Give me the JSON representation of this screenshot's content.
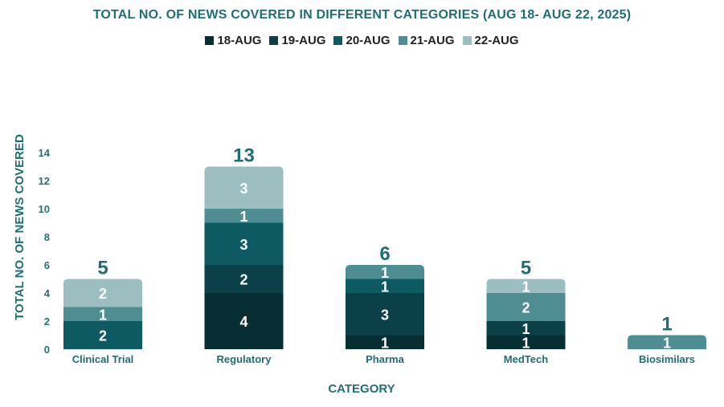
{
  "chart_data": {
    "type": "bar",
    "stacked": true,
    "title": "TOTAL NO. OF NEWS COVERED IN DIFFERENT CATEGORIES (AUG 18- AUG 22, 2025)",
    "xlabel": "CATEGORY",
    "ylabel": "TOTAL  NO. OF NEWS COVERED",
    "ylim": [
      0,
      14
    ],
    "yticks": [
      0,
      2,
      4,
      6,
      8,
      10,
      12,
      14
    ],
    "grid": false,
    "legend_position": "top-center",
    "categories": [
      "Clinical Trial",
      "Regulatory",
      "Pharma",
      "MedTech",
      "Biosimilars"
    ],
    "series": [
      {
        "name": "18-AUG",
        "color": "#062e33",
        "values": [
          0,
          4,
          1,
          1,
          0
        ]
      },
      {
        "name": "19-AUG",
        "color": "#0b4048",
        "values": [
          0,
          2,
          3,
          1,
          0
        ]
      },
      {
        "name": "20-AUG",
        "color": "#0e5a63",
        "values": [
          2,
          3,
          1,
          0,
          0
        ]
      },
      {
        "name": "21-AUG",
        "color": "#4e8d92",
        "values": [
          1,
          1,
          1,
          2,
          1
        ]
      },
      {
        "name": "22-AUG",
        "color": "#9cbec1",
        "values": [
          2,
          3,
          0,
          1,
          0
        ]
      }
    ],
    "totals": [
      5,
      13,
      6,
      5,
      1
    ]
  }
}
